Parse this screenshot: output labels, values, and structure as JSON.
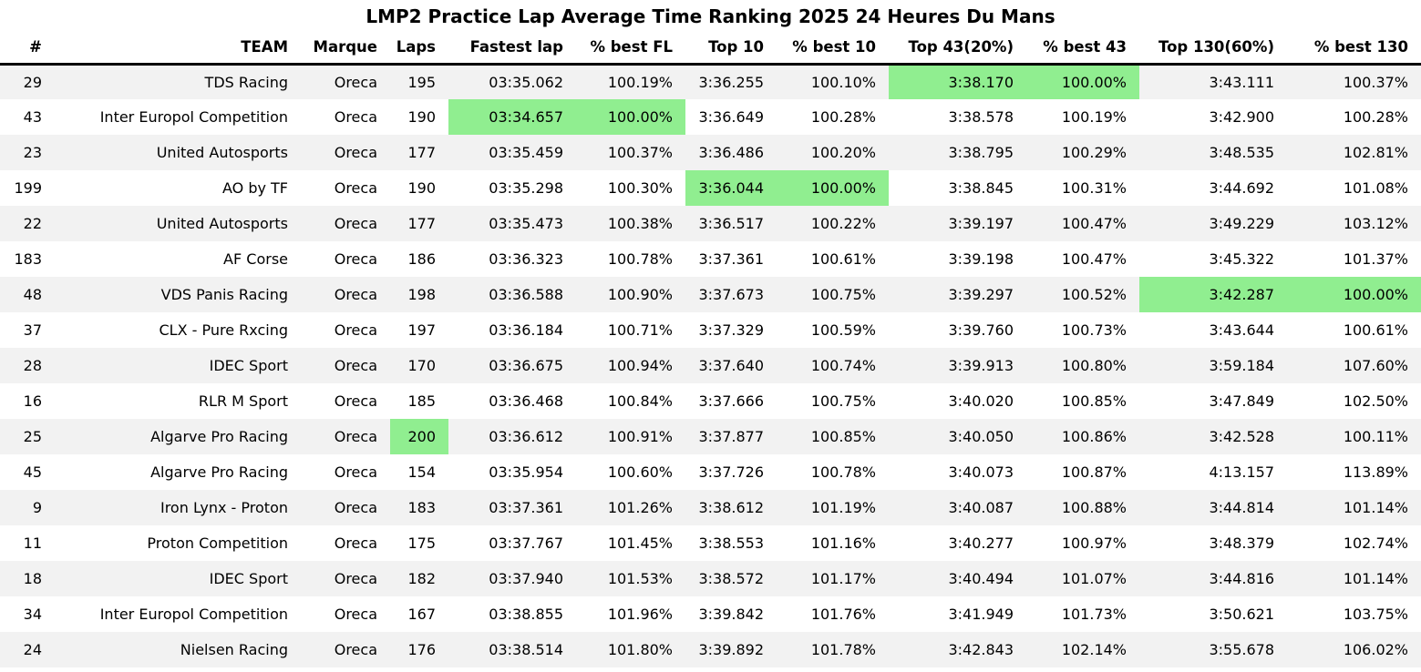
{
  "title": "LMP2 Practice Lap Average Time Ranking 2025 24 Heures Du Mans",
  "colors": {
    "highlight": "#90ee90",
    "row_stripe": "#f2f2f2",
    "background": "#ffffff",
    "text": "#000000",
    "header_rule": "#000000"
  },
  "chart_data": {
    "type": "table",
    "title": "LMP2 Practice Lap Average Time Ranking 2025 24 Heures Du Mans",
    "columns": [
      "#",
      "TEAM",
      "Marque",
      "Laps",
      "Fastest lap",
      "% best FL",
      "Top 10",
      "% best 10",
      "Top 43(20%)",
      "% best 43",
      "Top 130(60%)",
      "% best 130"
    ],
    "rows": [
      {
        "cells": [
          "29",
          "TDS Racing",
          "Oreca",
          "195",
          "03:35.062",
          "100.19%",
          "3:36.255",
          "100.10%",
          "3:38.170",
          "100.00%",
          "3:43.111",
          "100.37%"
        ],
        "highlight": [
          8,
          9
        ]
      },
      {
        "cells": [
          "43",
          "Inter Europol Competition",
          "Oreca",
          "190",
          "03:34.657",
          "100.00%",
          "3:36.649",
          "100.28%",
          "3:38.578",
          "100.19%",
          "3:42.900",
          "100.28%"
        ],
        "highlight": [
          4,
          5
        ]
      },
      {
        "cells": [
          "23",
          "United Autosports",
          "Oreca",
          "177",
          "03:35.459",
          "100.37%",
          "3:36.486",
          "100.20%",
          "3:38.795",
          "100.29%",
          "3:48.535",
          "102.81%"
        ],
        "highlight": []
      },
      {
        "cells": [
          "199",
          "AO by TF",
          "Oreca",
          "190",
          "03:35.298",
          "100.30%",
          "3:36.044",
          "100.00%",
          "3:38.845",
          "100.31%",
          "3:44.692",
          "101.08%"
        ],
        "highlight": [
          6,
          7
        ]
      },
      {
        "cells": [
          "22",
          "United Autosports",
          "Oreca",
          "177",
          "03:35.473",
          "100.38%",
          "3:36.517",
          "100.22%",
          "3:39.197",
          "100.47%",
          "3:49.229",
          "103.12%"
        ],
        "highlight": []
      },
      {
        "cells": [
          "183",
          "AF Corse",
          "Oreca",
          "186",
          "03:36.323",
          "100.78%",
          "3:37.361",
          "100.61%",
          "3:39.198",
          "100.47%",
          "3:45.322",
          "101.37%"
        ],
        "highlight": []
      },
      {
        "cells": [
          "48",
          "VDS Panis Racing",
          "Oreca",
          "198",
          "03:36.588",
          "100.90%",
          "3:37.673",
          "100.75%",
          "3:39.297",
          "100.52%",
          "3:42.287",
          "100.00%"
        ],
        "highlight": [
          10,
          11
        ]
      },
      {
        "cells": [
          "37",
          "CLX - Pure Rxcing",
          "Oreca",
          "197",
          "03:36.184",
          "100.71%",
          "3:37.329",
          "100.59%",
          "3:39.760",
          "100.73%",
          "3:43.644",
          "100.61%"
        ],
        "highlight": []
      },
      {
        "cells": [
          "28",
          "IDEC Sport",
          "Oreca",
          "170",
          "03:36.675",
          "100.94%",
          "3:37.640",
          "100.74%",
          "3:39.913",
          "100.80%",
          "3:59.184",
          "107.60%"
        ],
        "highlight": []
      },
      {
        "cells": [
          "16",
          "RLR M Sport",
          "Oreca",
          "185",
          "03:36.468",
          "100.84%",
          "3:37.666",
          "100.75%",
          "3:40.020",
          "100.85%",
          "3:47.849",
          "102.50%"
        ],
        "highlight": []
      },
      {
        "cells": [
          "25",
          "Algarve Pro Racing",
          "Oreca",
          "200",
          "03:36.612",
          "100.91%",
          "3:37.877",
          "100.85%",
          "3:40.050",
          "100.86%",
          "3:42.528",
          "100.11%"
        ],
        "highlight": [
          3
        ]
      },
      {
        "cells": [
          "45",
          "Algarve Pro Racing",
          "Oreca",
          "154",
          "03:35.954",
          "100.60%",
          "3:37.726",
          "100.78%",
          "3:40.073",
          "100.87%",
          "4:13.157",
          "113.89%"
        ],
        "highlight": []
      },
      {
        "cells": [
          "9",
          "Iron Lynx - Proton",
          "Oreca",
          "183",
          "03:37.361",
          "101.26%",
          "3:38.612",
          "101.19%",
          "3:40.087",
          "100.88%",
          "3:44.814",
          "101.14%"
        ],
        "highlight": []
      },
      {
        "cells": [
          "11",
          "Proton Competition",
          "Oreca",
          "175",
          "03:37.767",
          "101.45%",
          "3:38.553",
          "101.16%",
          "3:40.277",
          "100.97%",
          "3:48.379",
          "102.74%"
        ],
        "highlight": []
      },
      {
        "cells": [
          "18",
          "IDEC Sport",
          "Oreca",
          "182",
          "03:37.940",
          "101.53%",
          "3:38.572",
          "101.17%",
          "3:40.494",
          "101.07%",
          "3:44.816",
          "101.14%"
        ],
        "highlight": []
      },
      {
        "cells": [
          "34",
          "Inter Europol Competition",
          "Oreca",
          "167",
          "03:38.855",
          "101.96%",
          "3:39.842",
          "101.76%",
          "3:41.949",
          "101.73%",
          "3:50.621",
          "103.75%"
        ],
        "highlight": []
      },
      {
        "cells": [
          "24",
          "Nielsen Racing",
          "Oreca",
          "176",
          "03:38.514",
          "101.80%",
          "3:39.892",
          "101.78%",
          "3:42.843",
          "102.14%",
          "3:55.678",
          "106.02%"
        ],
        "highlight": []
      }
    ]
  }
}
